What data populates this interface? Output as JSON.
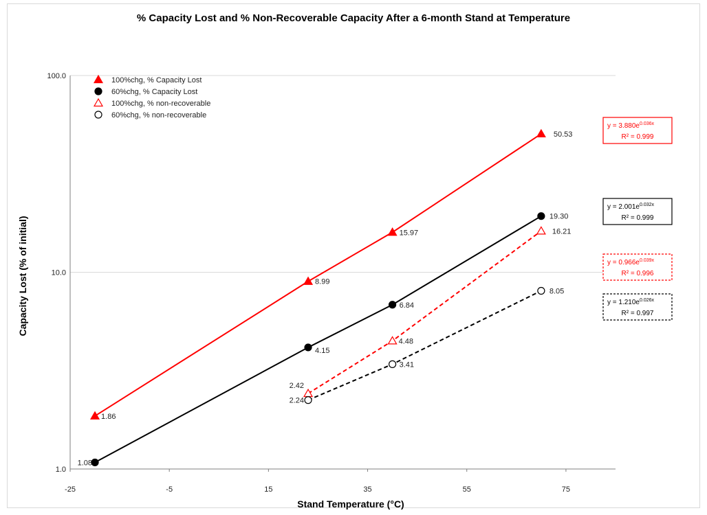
{
  "chart_data": {
    "type": "scatter",
    "title": "% Capacity Lost and % Non-Recoverable Capacity After a 6-month Stand at Temperature",
    "xlabel": "Stand Temperature (°C)",
    "ylabel": "Capacity Lost (% of initial)",
    "xlim": [
      -25,
      85
    ],
    "ylim": [
      1,
      100
    ],
    "yscale": "log",
    "xticks": [
      "-25",
      "-5",
      "15",
      "35",
      "55",
      "75"
    ],
    "yticks": [
      "1.0",
      "10.0",
      "100.0"
    ],
    "legend_position": "top-left",
    "grid": "horizontal",
    "series": [
      {
        "name": "100%chg, % Capacity Lost",
        "color": "#ff0000",
        "marker": "triangle-filled",
        "line": "solid",
        "x": [
          -20,
          23,
          40,
          70
        ],
        "y": [
          1.86,
          8.99,
          15.97,
          50.53
        ],
        "labels": [
          "1.86",
          "8.99",
          "15.97",
          "50.53"
        ],
        "equation": {
          "main": "y = 3.880e",
          "exp": "0.036x",
          "r2": "R² = 0.999"
        }
      },
      {
        "name": "60%chg, % Capacity Lost",
        "color": "#000000",
        "marker": "circle-filled",
        "line": "solid",
        "x": [
          -20,
          23,
          40,
          70
        ],
        "y": [
          1.08,
          4.15,
          6.84,
          19.3
        ],
        "labels": [
          "1.08",
          "4.15",
          "6.84",
          "19.30"
        ],
        "equation": {
          "main": "y = 2.001e",
          "exp": "0.032x",
          "r2": "R² = 0.999"
        }
      },
      {
        "name": "100%chg, % non-recoverable",
        "color": "#ff0000",
        "marker": "triangle-open",
        "line": "dashed",
        "x": [
          23,
          40,
          70
        ],
        "y": [
          2.42,
          4.48,
          16.21
        ],
        "labels": [
          "2.42",
          "4.48",
          "16.21"
        ],
        "equation": {
          "main": "y = 0.966e",
          "exp": "0.039x",
          "r2": "R² = 0.996"
        }
      },
      {
        "name": "60%chg, % non-recoverable",
        "color": "#000000",
        "marker": "circle-open",
        "line": "dashed",
        "x": [
          23,
          40,
          70
        ],
        "y": [
          2.24,
          3.41,
          8.05
        ],
        "labels": [
          "2.24",
          "3.41",
          "8.05"
        ],
        "equation": {
          "main": "y = 1.210e",
          "exp": "0.026x",
          "r2": "R² = 0.997"
        }
      }
    ]
  }
}
